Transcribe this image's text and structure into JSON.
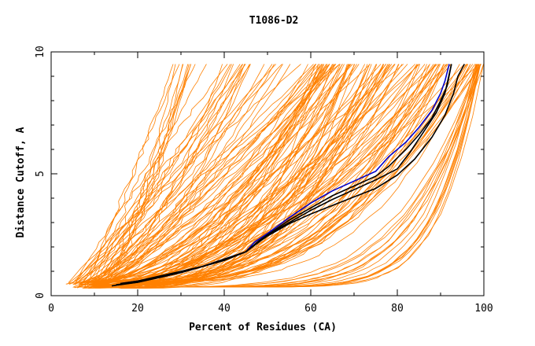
{
  "chart_data": {
    "type": "line",
    "title": "T1086-D2",
    "xlabel": "Percent of Residues (CA)",
    "ylabel": "Distance Cutoff, A",
    "xlim": [
      0,
      100
    ],
    "ylim": [
      0,
      10
    ],
    "x_ticks": [
      "0",
      "20",
      "40",
      "60",
      "80",
      "100"
    ],
    "y_ticks": [
      "0",
      "5",
      "10"
    ],
    "grid": false,
    "colors": {
      "bundle": "#ff8000",
      "highlight_black": "#000000",
      "highlight_blue": "#0000cc"
    },
    "bundle_description_series": {
      "name": "",
      "count": 160,
      "spread": "many orange curves from near 0 A at 3-25% up to 9.5 A between 27% and 100%"
    },
    "series": [
      {
        "name": "",
        "color": "#0000cc",
        "x": [
          16,
          20,
          25,
          30,
          35,
          40,
          45,
          47,
          50,
          55,
          60,
          65,
          70,
          75,
          78,
          82,
          85,
          88,
          90,
          91,
          92
        ],
        "y": [
          0.5,
          0.6,
          0.75,
          0.95,
          1.2,
          1.5,
          1.8,
          2.2,
          2.55,
          3.2,
          3.8,
          4.3,
          4.7,
          5.1,
          5.7,
          6.3,
          6.9,
          7.6,
          8.3,
          8.8,
          9.5
        ]
      },
      {
        "name": "",
        "color": "#000000",
        "x": [
          15,
          20,
          25,
          30,
          35,
          40,
          45,
          48,
          50,
          55,
          60,
          65,
          70,
          75,
          78,
          82,
          85,
          88,
          90,
          91.5,
          92.5
        ],
        "y": [
          0.45,
          0.55,
          0.75,
          0.95,
          1.2,
          1.45,
          1.8,
          2.25,
          2.5,
          3.1,
          3.6,
          4.1,
          4.5,
          4.9,
          5.3,
          6.0,
          6.6,
          7.3,
          8.0,
          8.6,
          9.5
        ]
      },
      {
        "name": "",
        "color": "#000000",
        "x": [
          16,
          20,
          25,
          30,
          35,
          40,
          45,
          48,
          50,
          55,
          60,
          65,
          70,
          75,
          80,
          83,
          86,
          89,
          91,
          92.5
        ],
        "y": [
          0.5,
          0.6,
          0.8,
          1.0,
          1.2,
          1.5,
          1.8,
          2.2,
          2.5,
          3.0,
          3.5,
          3.95,
          4.35,
          4.75,
          5.2,
          5.9,
          6.7,
          7.5,
          8.3,
          9.5
        ]
      },
      {
        "name": "",
        "color": "#000000",
        "x": [
          14,
          20,
          25,
          30,
          35,
          40,
          45,
          48,
          50,
          55,
          60,
          65,
          70,
          75,
          80,
          84,
          88,
          91,
          93,
          94,
          95.5
        ],
        "y": [
          0.4,
          0.55,
          0.75,
          0.95,
          1.2,
          1.45,
          1.8,
          2.2,
          2.45,
          2.95,
          3.35,
          3.7,
          4.05,
          4.4,
          4.95,
          5.6,
          6.5,
          7.4,
          8.3,
          9.0,
          9.5
        ]
      }
    ]
  }
}
